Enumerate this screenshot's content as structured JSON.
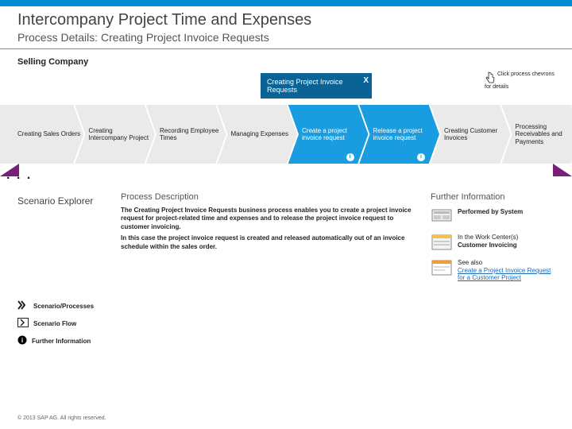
{
  "colors": {
    "topbar": "#008fd3",
    "chev_bg": "#eaeaea",
    "chev_active": "#1a9de0",
    "tooltip_bg": "#0a6394",
    "accent_triangle": "#7a1f7a",
    "link": "#1a6bb8"
  },
  "header": {
    "title": "Intercompany Project Time and Expenses",
    "subtitle": "Process Details: Creating Project Invoice Requests"
  },
  "hint": "Click process chevrons for details",
  "company_label": "Selling Company",
  "tooltip": {
    "label": "Creating Project Invoice Requests",
    "close": "X"
  },
  "flow": {
    "dots": ". . .",
    "steps": [
      {
        "id": "creating-sales-orders",
        "label": "Creating Sales Orders",
        "active": false,
        "info": false
      },
      {
        "id": "creating-intercompany-project",
        "label": "Creating Intercompany Project",
        "active": false,
        "info": false
      },
      {
        "id": "recording-employee-times",
        "label": "Recording Employee Times",
        "active": false,
        "info": false
      },
      {
        "id": "managing-expenses",
        "label": "Managing Expenses",
        "active": false,
        "info": false
      },
      {
        "id": "create-project-invoice-request",
        "label": "Create a project invoice request",
        "active": true,
        "info": true
      },
      {
        "id": "release-project-invoice-request",
        "label": "Release a project invoice request",
        "active": true,
        "info": true
      },
      {
        "id": "creating-customer-invoices",
        "label": "Creating Customer Invoices",
        "active": false,
        "info": false
      },
      {
        "id": "processing-receivables-payments",
        "label": "Processing Receivables and Payments",
        "active": false,
        "info": false
      }
    ]
  },
  "explorer": {
    "heading": "Scenario Explorer"
  },
  "side_links": [
    {
      "id": "scenario-processes",
      "label": "Scenario/Processes",
      "icon": "double-chevron"
    },
    {
      "id": "scenario-flow",
      "label": "Scenario Flow",
      "icon": "chevron-box"
    },
    {
      "id": "further-info",
      "label": "Further Information",
      "icon": "info-circle"
    }
  ],
  "description": {
    "heading": "Process Description",
    "paragraphs": [
      "The Creating Project Invoice Requests business process enables you to create a project invoice request for project-related time and expenses and to release the project invoice request to customer invoicing.",
      "In this case the project invoice request is created and released automatically out of an invoice schedule within the sales order."
    ]
  },
  "further_info": {
    "heading": "Further Information",
    "items": [
      {
        "id": "performed-by-system",
        "icon": "system",
        "text": "Performed by System"
      },
      {
        "id": "work-center",
        "icon": "workcenter",
        "text_prefix": "In the Work Center(s)",
        "text": "Customer Invoicing"
      },
      {
        "id": "see-also",
        "icon": "doc",
        "text_prefix": "See also",
        "link_text": "Create a Project Invoice Request for a Customer Project"
      }
    ]
  },
  "footer": "© 2013 SAP AG. All rights reserved."
}
